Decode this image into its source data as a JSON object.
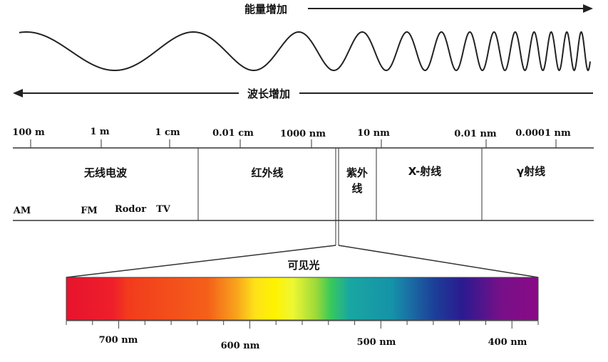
{
  "energy_label": "能量增加",
  "wavelength_label": "波长增加",
  "scale_ticks": [
    "100 m",
    "1 m",
    "1 cm",
    "0.01 cm",
    "1000 nm",
    "10 nm",
    "0.01 nm",
    "0.0001 nm"
  ],
  "bands": {
    "radio": "无线电波",
    "infrared": "红外线",
    "uv_line1": "紫外",
    "uv_line2": "线",
    "xray": "X-射线",
    "gamma": "γ射线"
  },
  "radio_sub": [
    "AM",
    "FM",
    "Rodor",
    "TV"
  ],
  "visible_label": "可见光",
  "visible_ticks": [
    "700 nm",
    "600 nm",
    "500 nm",
    "400 nm"
  ],
  "colors": {
    "line": "#333333",
    "red": "#e8132d",
    "yellow": "#fff200",
    "green": "#1ec45a",
    "blue": "#1c3f98",
    "violet": "#8a0a86"
  }
}
